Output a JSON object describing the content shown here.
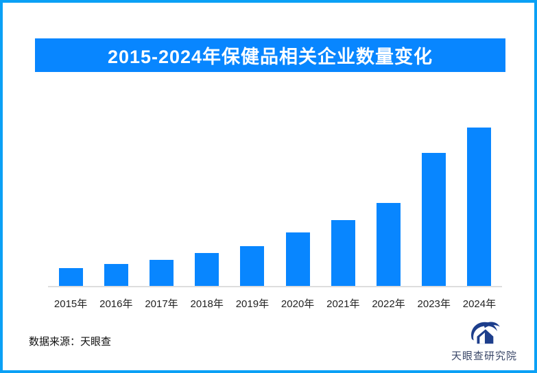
{
  "page": {
    "border_color": "#0AA0F5",
    "background_color": "#FFFFFF"
  },
  "header": {
    "title": "2015-2024年保健品相关企业数量变化",
    "banner_color": "#0886FF",
    "title_color": "#FFFFFF"
  },
  "chart_data": {
    "type": "bar",
    "title": "2015-2024年保健品相关企业数量变化",
    "categories": [
      "2015年",
      "2016年",
      "2017年",
      "2018年",
      "2019年",
      "2020年",
      "2021年",
      "2022年",
      "2023年",
      "2024年"
    ],
    "values_relative": [
      11.1,
      13.9,
      16.5,
      20.9,
      25.0,
      33.9,
      41.6,
      52.5,
      84.0,
      100.0
    ],
    "values_unit": "percent_of_tallest_bar",
    "value_labels_shown": false,
    "y_axis_shown": false,
    "gridlines": false,
    "legend": false,
    "xlabel": "",
    "ylabel": "",
    "bar_color": "#0886FF",
    "axis_line_color": "#DDDDDD",
    "x_tick_color": "#222222"
  },
  "footer": {
    "source": "数据来源：天眼查",
    "logo_text": "天眼查研究院",
    "logo_mark": "tianyancha-swoosh-house",
    "logo_color": "#1D3E8C",
    "logo_text_color": "#3A4768"
  }
}
